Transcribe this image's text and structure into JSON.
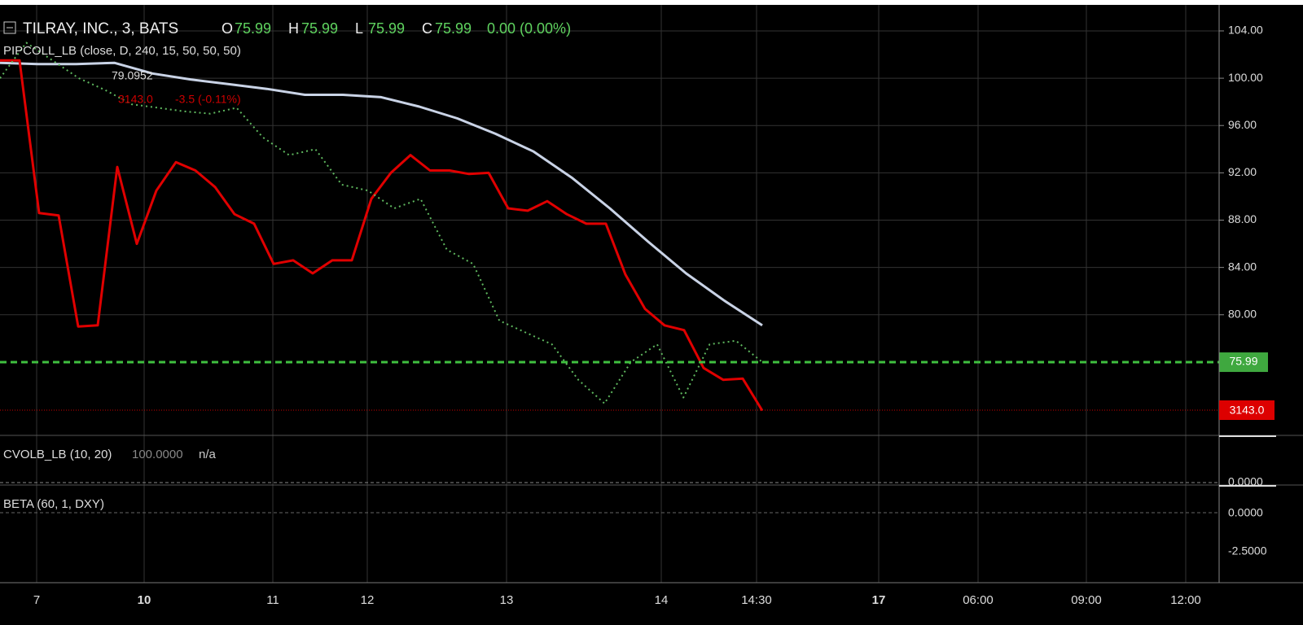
{
  "header": {
    "symbol": "TILRAY, INC., 3, BATS",
    "ohlc": [
      {
        "label": "O",
        "value": "75.99"
      },
      {
        "label": "H",
        "value": "75.99"
      },
      {
        "label": "L",
        "value": "75.99"
      },
      {
        "label": "C",
        "value": "75.99"
      }
    ],
    "change": "0.00 (0.00%)"
  },
  "indicators": {
    "pipcoll": {
      "title": "PIPCOLL_LB (close, D, 240, 15, 50, 50, 50)",
      "value": "79.0952",
      "level": "3143.0",
      "change": "-3.5 (-0.11%)"
    },
    "cvolb": {
      "title": "CVOLB_LB (10, 20)",
      "value": "100.0000",
      "extra": "n/a",
      "axis_label": "0.0000"
    },
    "beta": {
      "title": "BETA (60, 1, DXY)",
      "axis_labels": [
        "0.0000",
        "-2.5000"
      ]
    }
  },
  "chart_data": {
    "type": "line",
    "ylim": [
      69.8,
      106.2
    ],
    "yticks": [
      {
        "value": 80,
        "label": "80.00"
      },
      {
        "value": 84,
        "label": "84.00"
      },
      {
        "value": 88,
        "label": "88.00"
      },
      {
        "value": 92,
        "label": "92.00"
      },
      {
        "value": 96,
        "label": "96.00"
      },
      {
        "value": 100,
        "label": "100.00"
      },
      {
        "value": 104,
        "label": "104.00"
      }
    ],
    "last_price": {
      "value": 75.99,
      "label": "75.99"
    },
    "xlabels": [
      "7",
      "10",
      "11",
      "12",
      "13",
      "14",
      "14:30",
      "17",
      "06:00",
      "09:00",
      "12:00"
    ],
    "grid": true,
    "series": [
      {
        "color": "#c9d3e6",
        "style": "solid",
        "values": [
          101.3,
          101.2,
          101.2,
          101.3,
          100.4,
          99.9,
          99.5,
          99.1,
          98.6,
          98.6,
          98.4,
          97.6,
          96.6,
          95.3,
          93.8,
          91.6,
          89.0,
          86.2,
          83.5,
          81.2,
          79.1
        ]
      },
      {
        "color": "#e00000",
        "style": "solid",
        "values": [
          101.5,
          101.5,
          88.6,
          88.4,
          79,
          79.1,
          92.5,
          86,
          90.5,
          92.9,
          92.2,
          90.8,
          88.5,
          87.7,
          84.3,
          84.6,
          83.5,
          84.6,
          84.6,
          89.8,
          92,
          93.5,
          92.2,
          92.2,
          91.9,
          92,
          89,
          88.8,
          89.6,
          88.5,
          87.7,
          87.7,
          83.4,
          80.5,
          79.1,
          78.7,
          75.5,
          74.5,
          74.6,
          71.9
        ]
      },
      {
        "color": "#5fb85f",
        "style": "dotted",
        "values": [
          100,
          103,
          101.5,
          100,
          99,
          97.8,
          97.5,
          97.2,
          97,
          97.5,
          95,
          93.5,
          94,
          91,
          90.5,
          89,
          89.8,
          85.5,
          84.3,
          79.5,
          78.5,
          77.5,
          74.5,
          72.5,
          76,
          77.5,
          73,
          77.5,
          77.8,
          76
        ]
      }
    ]
  }
}
